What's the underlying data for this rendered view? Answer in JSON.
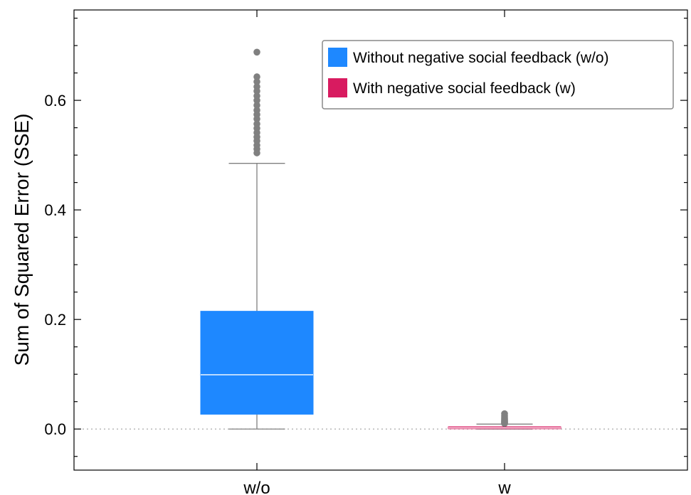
{
  "chart_data": {
    "type": "box",
    "title": "",
    "xlabel": "",
    "ylabel": "Sum of Squared Error (SSE)",
    "categories": [
      "w/o",
      "w"
    ],
    "ylim": [
      -0.075,
      0.765
    ],
    "yticks": [
      0.0,
      0.2,
      0.4,
      0.6
    ],
    "ytick_labels": [
      "0.0",
      "0.2",
      "0.4",
      "0.6"
    ],
    "reference_line": {
      "y": 0.0,
      "style": "dotted",
      "color": "#aaaaaa"
    },
    "grid": false,
    "legend_position": "top-right",
    "series": [
      {
        "name": "Without negative social feedback (w/o)",
        "category": "w/o",
        "color": "#1e88ff",
        "median_color": "#ffffff",
        "whisker_low": 0.0,
        "q1": 0.027,
        "median": 0.099,
        "q3": 0.215,
        "whisker_high": 0.485,
        "outliers": [
          0.504,
          0.511,
          0.518,
          0.526,
          0.533,
          0.541,
          0.549,
          0.557,
          0.566,
          0.574,
          0.582,
          0.591,
          0.6,
          0.608,
          0.617,
          0.625,
          0.634,
          0.643,
          0.688
        ]
      },
      {
        "name": "With negative social feedback (w)",
        "category": "w",
        "color": "#d81b60",
        "median_color": "#ffffff",
        "whisker_low": 0.0,
        "q1": 0.0005,
        "median": 0.002,
        "q3": 0.004,
        "whisker_high": 0.009,
        "outliers": [
          0.01,
          0.011,
          0.012,
          0.013,
          0.014,
          0.015,
          0.017,
          0.019,
          0.022,
          0.025,
          0.028
        ]
      }
    ]
  }
}
